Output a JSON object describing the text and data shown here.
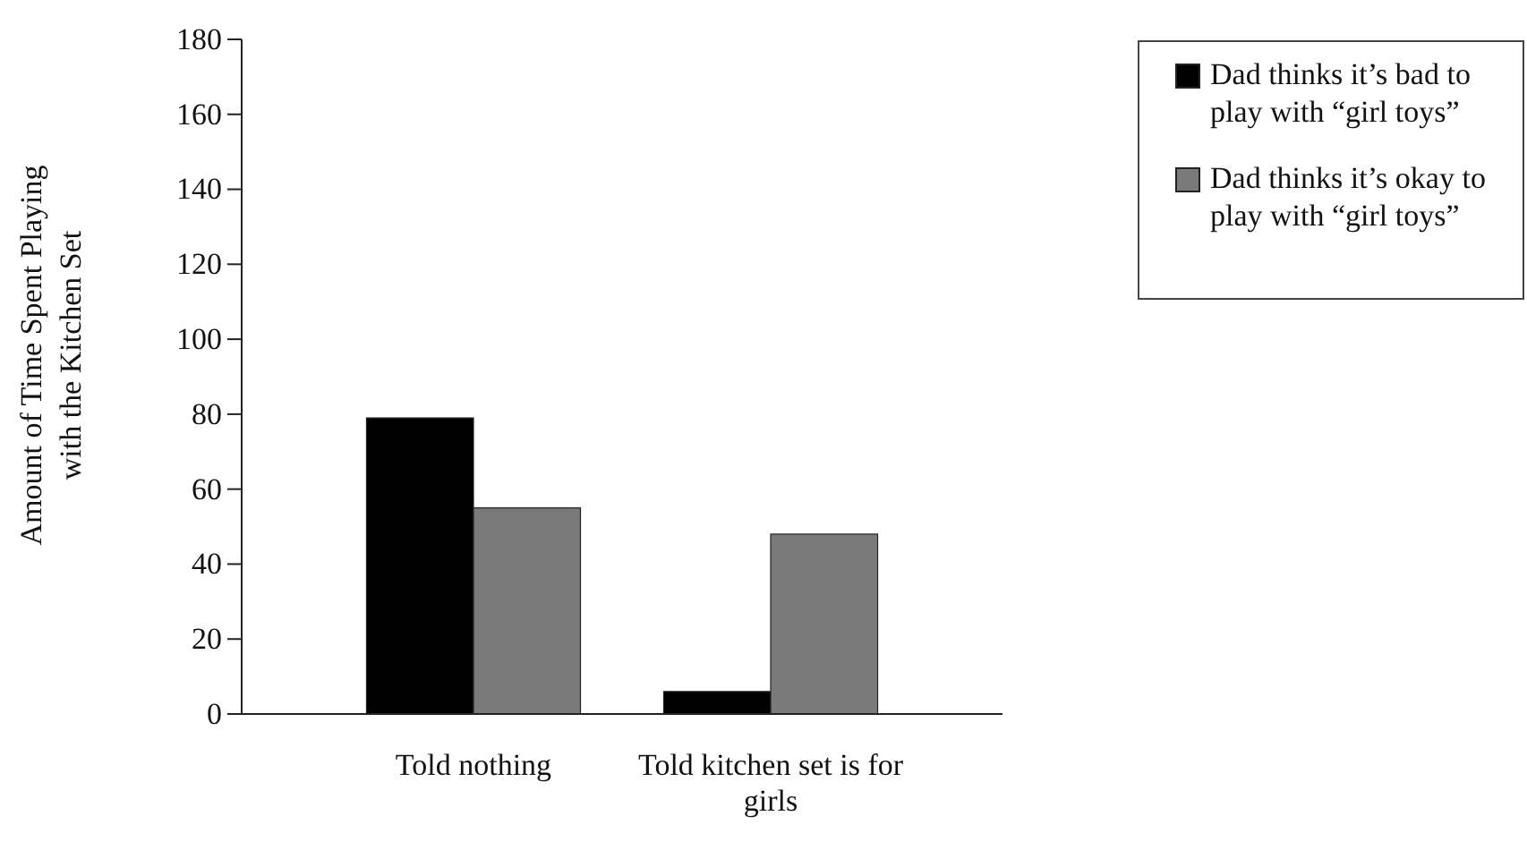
{
  "chart_data": {
    "type": "bar",
    "ylabel": "Amount of Time Spent Playing with the Kitchen Set",
    "categories": [
      "Told nothing",
      "Told kitchen set is for girls"
    ],
    "series": [
      {
        "name": "Dad thinks it’s bad to play with “girl toys”",
        "color": "#000000",
        "values": [
          79,
          6
        ]
      },
      {
        "name": "Dad thinks it’s okay to play with “girl toys”",
        "color": "#7a7a7a",
        "values": [
          55,
          48
        ]
      }
    ],
    "ylim": [
      0,
      180
    ],
    "yticks": [
      0,
      20,
      40,
      60,
      80,
      100,
      120,
      140,
      160,
      180
    ],
    "grid": false,
    "legend": "top right"
  }
}
